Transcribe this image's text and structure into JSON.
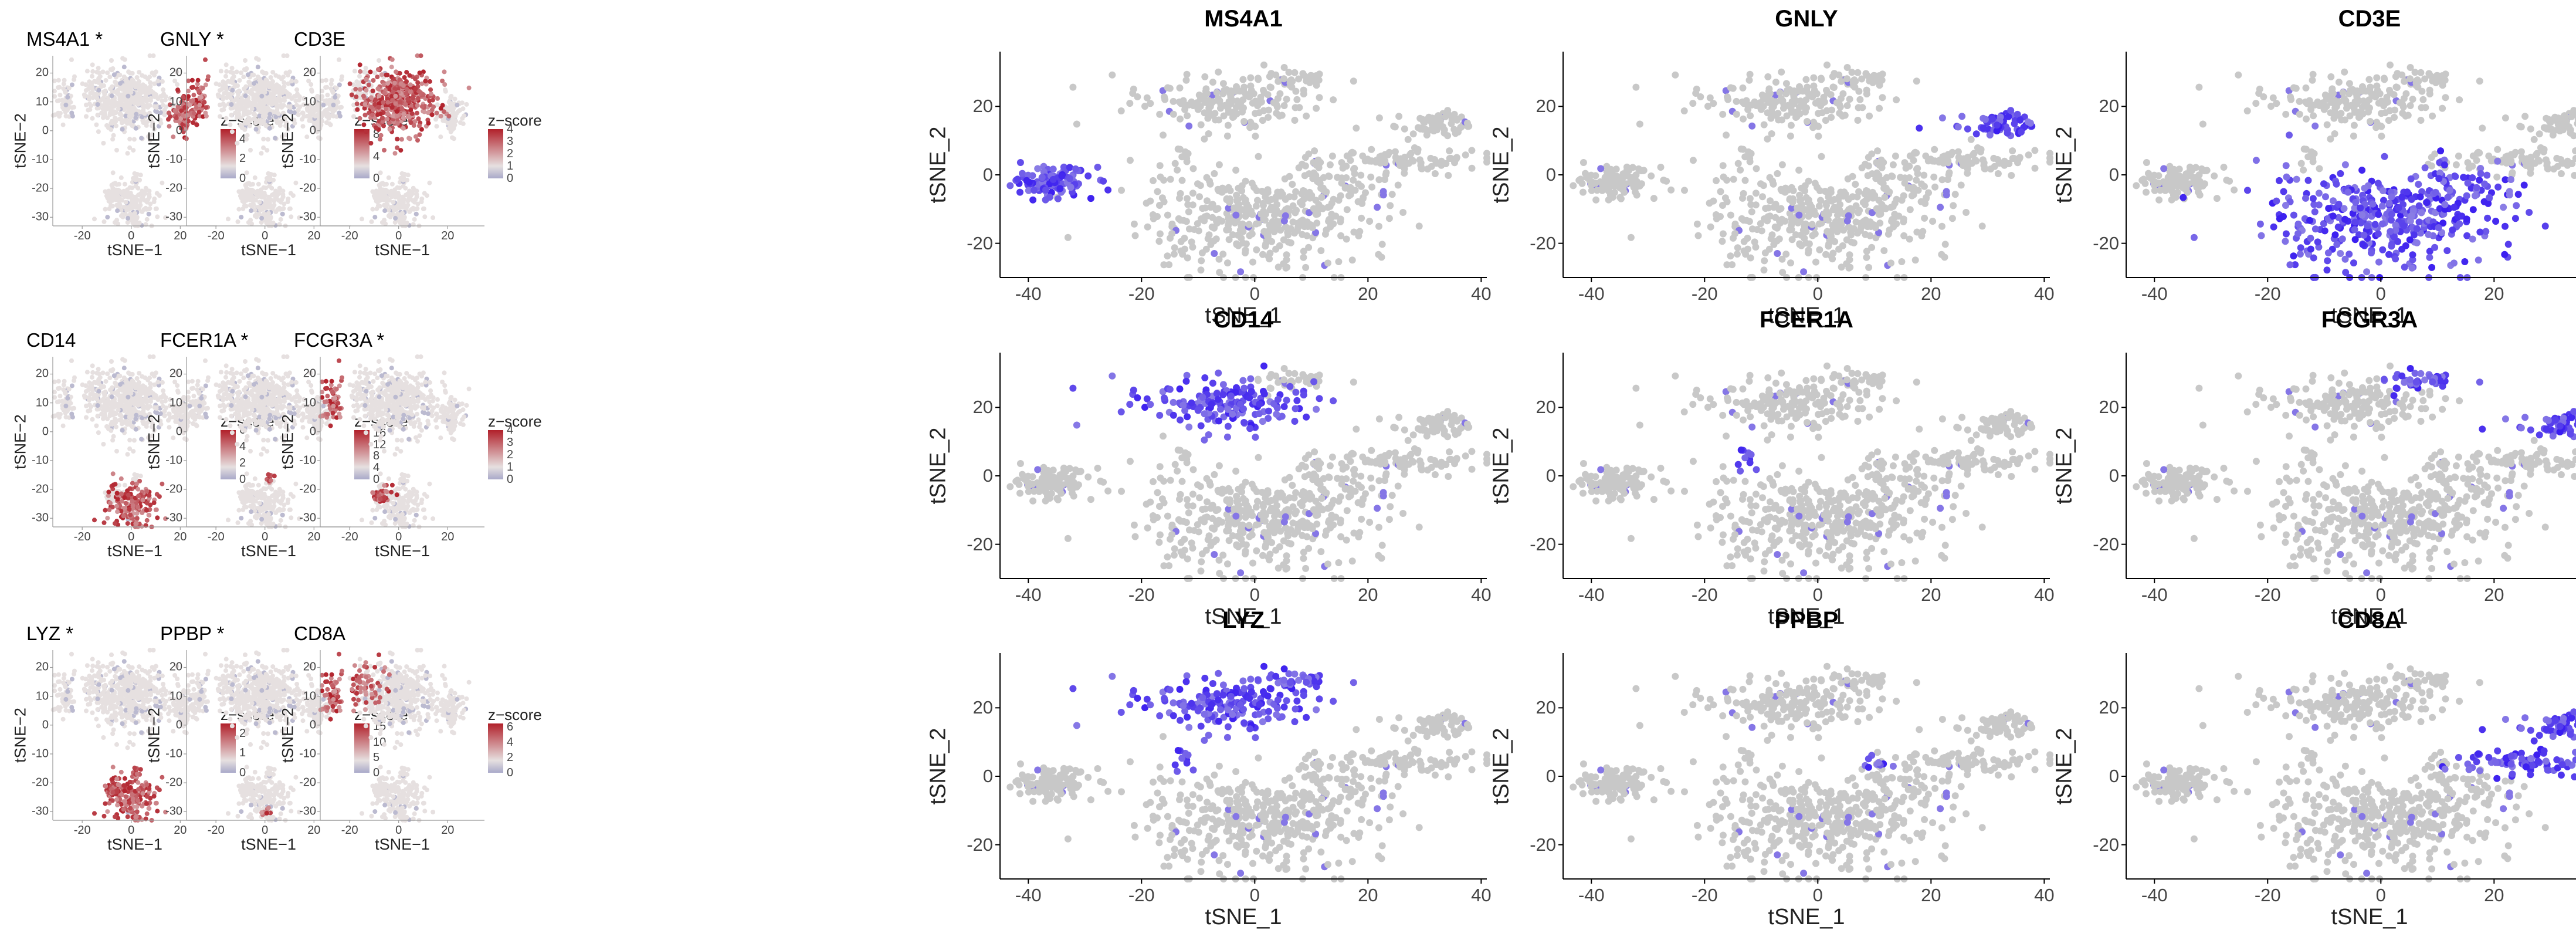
{
  "colors": {
    "background_point": "#c8c8c8",
    "blue_low": "#cfcfdc",
    "blue_high": "#3a1df0",
    "zscore_low": "#a9a9c9",
    "zscore_mid": "#e6e0e0",
    "zscore_high": "#b1202a",
    "axis": "#000000"
  },
  "chart_data": [
    {
      "type": "scatter",
      "panel": "zscore",
      "title": "MS4A1 *",
      "xlabel": "tSNE−1",
      "ylabel": "tSNE−2",
      "xlim": [
        -32,
        35
      ],
      "ylim": [
        -33,
        26
      ],
      "xticks": [
        -20,
        0,
        20
      ],
      "yticks": [
        -30,
        -20,
        -10,
        0,
        10,
        20
      ],
      "legend": {
        "title": "z−score",
        "ticks": [
          0,
          2,
          4
        ],
        "max": 5
      },
      "highlight": [
        "B"
      ],
      "grid": false
    },
    {
      "type": "scatter",
      "panel": "zscore",
      "title": "GNLY *",
      "xlabel": "tSNE−1",
      "ylabel": "tSNE−2",
      "xlim": [
        -32,
        35
      ],
      "ylim": [
        -33,
        26
      ],
      "xticks": [
        -20,
        0,
        20
      ],
      "yticks": [
        -30,
        -20,
        -10,
        0,
        10,
        20
      ],
      "legend": {
        "title": "z−score",
        "ticks": [
          0,
          4,
          8
        ],
        "max": 9
      },
      "highlight": [
        "NK"
      ],
      "grid": false
    },
    {
      "type": "scatter",
      "panel": "zscore",
      "title": "CD3E",
      "xlabel": "tSNE−1",
      "ylabel": "tSNE−2",
      "xlim": [
        -32,
        35
      ],
      "ylim": [
        -33,
        26
      ],
      "xticks": [
        -20,
        0,
        20
      ],
      "yticks": [
        -30,
        -20,
        -10,
        0,
        10,
        20
      ],
      "legend": {
        "title": "z−score",
        "ticks": [
          0,
          1,
          2,
          3,
          4
        ],
        "max": 4
      },
      "highlight": [
        "T"
      ],
      "grid": false
    },
    {
      "type": "scatter",
      "panel": "zscore",
      "title": "CD14",
      "xlabel": "tSNE−1",
      "ylabel": "tSNE−2",
      "xlim": [
        -32,
        35
      ],
      "ylim": [
        -33,
        26
      ],
      "xticks": [
        -20,
        0,
        20
      ],
      "yticks": [
        -30,
        -20,
        -10,
        0,
        10,
        20
      ],
      "legend": {
        "title": "z−score",
        "ticks": [
          0,
          2,
          4,
          6
        ],
        "max": 6
      },
      "highlight": [
        "CD14Mono"
      ],
      "grid": false
    },
    {
      "type": "scatter",
      "panel": "zscore",
      "title": "FCER1A *",
      "xlabel": "tSNE−1",
      "ylabel": "tSNE−2",
      "xlim": [
        -32,
        35
      ],
      "ylim": [
        -33,
        26
      ],
      "xticks": [
        -20,
        0,
        20
      ],
      "yticks": [
        -30,
        -20,
        -10,
        0,
        10,
        20
      ],
      "legend": {
        "title": "z−score",
        "ticks": [
          0,
          4,
          8,
          12,
          16
        ],
        "max": 17
      },
      "highlight": [
        "DC"
      ],
      "grid": false
    },
    {
      "type": "scatter",
      "panel": "zscore",
      "title": "FCGR3A *",
      "xlabel": "tSNE−1",
      "ylabel": "tSNE−2",
      "xlim": [
        -32,
        35
      ],
      "ylim": [
        -33,
        26
      ],
      "xticks": [
        -20,
        0,
        20
      ],
      "yticks": [
        -30,
        -20,
        -10,
        0,
        10,
        20
      ],
      "legend": {
        "title": "z−score",
        "ticks": [
          0,
          1,
          2,
          3,
          4
        ],
        "max": 4
      },
      "highlight": [
        "FCGR3AMono",
        "NK"
      ],
      "grid": false
    },
    {
      "type": "scatter",
      "panel": "zscore",
      "title": "LYZ *",
      "xlabel": "tSNE−1",
      "ylabel": "tSNE−2",
      "xlim": [
        -32,
        35
      ],
      "ylim": [
        -33,
        26
      ],
      "xticks": [
        -20,
        0,
        20
      ],
      "yticks": [
        -30,
        -20,
        -10,
        0,
        10,
        20
      ],
      "legend": {
        "title": "z−score",
        "ticks": [
          0,
          1,
          2
        ],
        "max": 2.5
      },
      "highlight": [
        "CD14Mono",
        "FCGR3AMono",
        "DC"
      ],
      "grid": false
    },
    {
      "type": "scatter",
      "panel": "zscore",
      "title": "PPBP *",
      "xlabel": "tSNE−1",
      "ylabel": "tSNE−2",
      "xlim": [
        -32,
        35
      ],
      "ylim": [
        -33,
        26
      ],
      "xticks": [
        -20,
        0,
        20
      ],
      "yticks": [
        -30,
        -20,
        -10,
        0,
        10,
        20
      ],
      "legend": {
        "title": "z−score",
        "ticks": [
          0,
          5,
          10,
          15
        ],
        "max": 16
      },
      "highlight": [
        "Platelet"
      ],
      "grid": false
    },
    {
      "type": "scatter",
      "panel": "zscore",
      "title": "CD8A",
      "xlabel": "tSNE−1",
      "ylabel": "tSNE−2",
      "xlim": [
        -32,
        35
      ],
      "ylim": [
        -33,
        26
      ],
      "xticks": [
        -20,
        0,
        20
      ],
      "yticks": [
        -30,
        -20,
        -10,
        0,
        10,
        20
      ],
      "legend": {
        "title": "z−score",
        "ticks": [
          0,
          2,
          4,
          6
        ],
        "max": 6.5
      },
      "highlight": [
        "NK",
        "CD8T"
      ],
      "grid": false
    },
    {
      "type": "scatter",
      "panel": "expression",
      "title": "MS4A1",
      "xlabel": "tSNE_1",
      "ylabel": "tSNE_2",
      "xlim": [
        -45,
        41
      ],
      "ylim": [
        -30,
        36
      ],
      "xticks": [
        -40,
        -20,
        0,
        20,
        40
      ],
      "yticks": [
        -20,
        0,
        20
      ],
      "highlight": [
        "B"
      ],
      "grid": false
    },
    {
      "type": "scatter",
      "panel": "expression",
      "title": "GNLY",
      "xlabel": "tSNE_1",
      "ylabel": "tSNE_2",
      "xlim": [
        -45,
        41
      ],
      "ylim": [
        -30,
        36
      ],
      "xticks": [
        -40,
        -20,
        0,
        20,
        40
      ],
      "yticks": [
        -20,
        0,
        20
      ],
      "highlight": [
        "NK"
      ],
      "grid": false
    },
    {
      "type": "scatter",
      "panel": "expression",
      "title": "CD3E",
      "xlabel": "tSNE_1",
      "ylabel": "tSNE_2",
      "xlim": [
        -45,
        41
      ],
      "ylim": [
        -30,
        36
      ],
      "xticks": [
        -40,
        -20,
        0,
        20,
        40
      ],
      "yticks": [
        -20,
        0,
        20
      ],
      "highlight": [
        "T"
      ],
      "grid": false
    },
    {
      "type": "scatter",
      "panel": "expression",
      "title": "CD14",
      "xlabel": "tSNE_1",
      "ylabel": "tSNE_2",
      "xlim": [
        -45,
        41
      ],
      "ylim": [
        -30,
        36
      ],
      "xticks": [
        -40,
        -20,
        0,
        20,
        40
      ],
      "yticks": [
        -20,
        0,
        20
      ],
      "highlight": [
        "CD14Mono"
      ],
      "grid": false
    },
    {
      "type": "scatter",
      "panel": "expression",
      "title": "FCER1A",
      "xlabel": "tSNE_1",
      "ylabel": "tSNE_2",
      "xlim": [
        -45,
        41
      ],
      "ylim": [
        -30,
        36
      ],
      "xticks": [
        -40,
        -20,
        0,
        20,
        40
      ],
      "yticks": [
        -20,
        0,
        20
      ],
      "highlight": [
        "DC"
      ],
      "grid": false
    },
    {
      "type": "scatter",
      "panel": "expression",
      "title": "FCGR3A",
      "xlabel": "tSNE_1",
      "ylabel": "tSNE_2",
      "xlim": [
        -45,
        41
      ],
      "ylim": [
        -30,
        36
      ],
      "xticks": [
        -40,
        -20,
        0,
        20,
        40
      ],
      "yticks": [
        -20,
        0,
        20
      ],
      "highlight": [
        "FCGR3AMono",
        "NK"
      ],
      "grid": false
    },
    {
      "type": "scatter",
      "panel": "expression",
      "title": "LYZ",
      "xlabel": "tSNE_1",
      "ylabel": "tSNE_2",
      "xlim": [
        -45,
        41
      ],
      "ylim": [
        -30,
        36
      ],
      "xticks": [
        -40,
        -20,
        0,
        20,
        40
      ],
      "yticks": [
        -20,
        0,
        20
      ],
      "highlight": [
        "CD14Mono",
        "FCGR3AMono",
        "DC"
      ],
      "grid": false
    },
    {
      "type": "scatter",
      "panel": "expression",
      "title": "PPBP",
      "xlabel": "tSNE_1",
      "ylabel": "tSNE_2",
      "xlim": [
        -45,
        41
      ],
      "ylim": [
        -30,
        36
      ],
      "xticks": [
        -40,
        -20,
        0,
        20,
        40
      ],
      "yticks": [
        -20,
        0,
        20
      ],
      "highlight": [
        "Platelet"
      ],
      "grid": false
    },
    {
      "type": "scatter",
      "panel": "expression",
      "title": "CD8A",
      "xlabel": "tSNE_1",
      "ylabel": "tSNE_2",
      "xlim": [
        -45,
        41
      ],
      "ylim": [
        -30,
        36
      ],
      "xticks": [
        -40,
        -20,
        0,
        20,
        40
      ],
      "yticks": [
        -20,
        0,
        20
      ],
      "highlight": [
        "NK",
        "CD8T"
      ],
      "grid": false
    }
  ]
}
